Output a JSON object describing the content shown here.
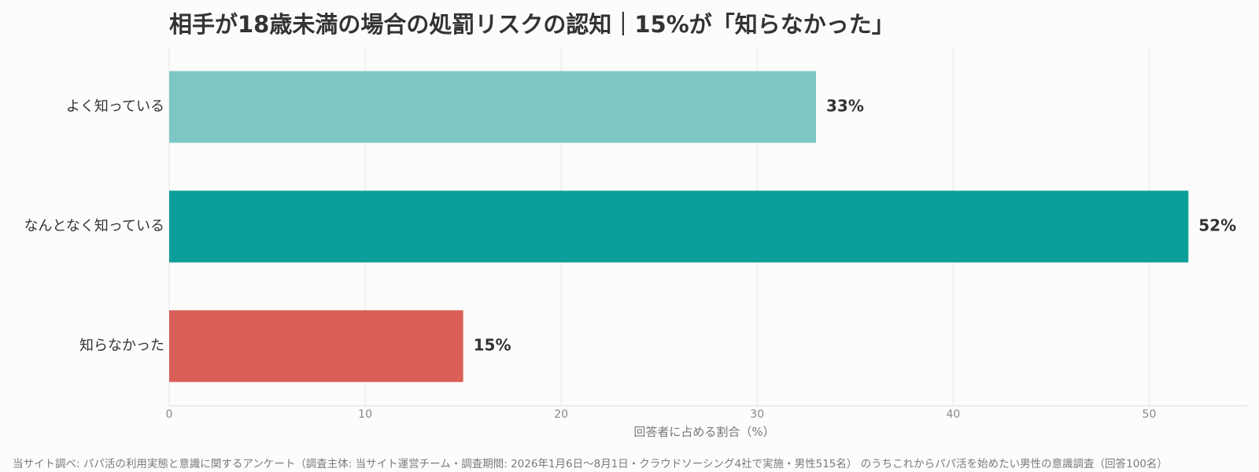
{
  "chart_data": {
    "type": "bar",
    "orientation": "horizontal",
    "title": "相手が18歳未満の場合の処罰リスクの認知｜15%が「知らなかった」",
    "xlabel": "回答者に占める割合（%）",
    "ylabel": "",
    "categories": [
      "よく知っている",
      "なんとなく知っている",
      "知らなかった"
    ],
    "values": [
      33,
      52,
      15
    ],
    "value_labels": [
      "33%",
      "52%",
      "15%"
    ],
    "colors": [
      "#7ec6c3",
      "#0b9e9a",
      "#d95f57"
    ],
    "xlim": [
      0,
      55
    ],
    "xticks": [
      0,
      10,
      20,
      30,
      40,
      50
    ],
    "xtick_labels": [
      "0",
      "10",
      "20",
      "30",
      "40",
      "50"
    ],
    "grid": "vertical",
    "legend": "none"
  },
  "footnote": "当サイト調べ: パパ活の利用実態と意識に関するアンケート（調査主体: 当サイト運営チーム・調査期間: 2026年1月6日〜8月1日・クラウドソーシング4社で実施・男性515名） のうちこれからパパ活を始めたい男性の意識調査（回答100名）"
}
